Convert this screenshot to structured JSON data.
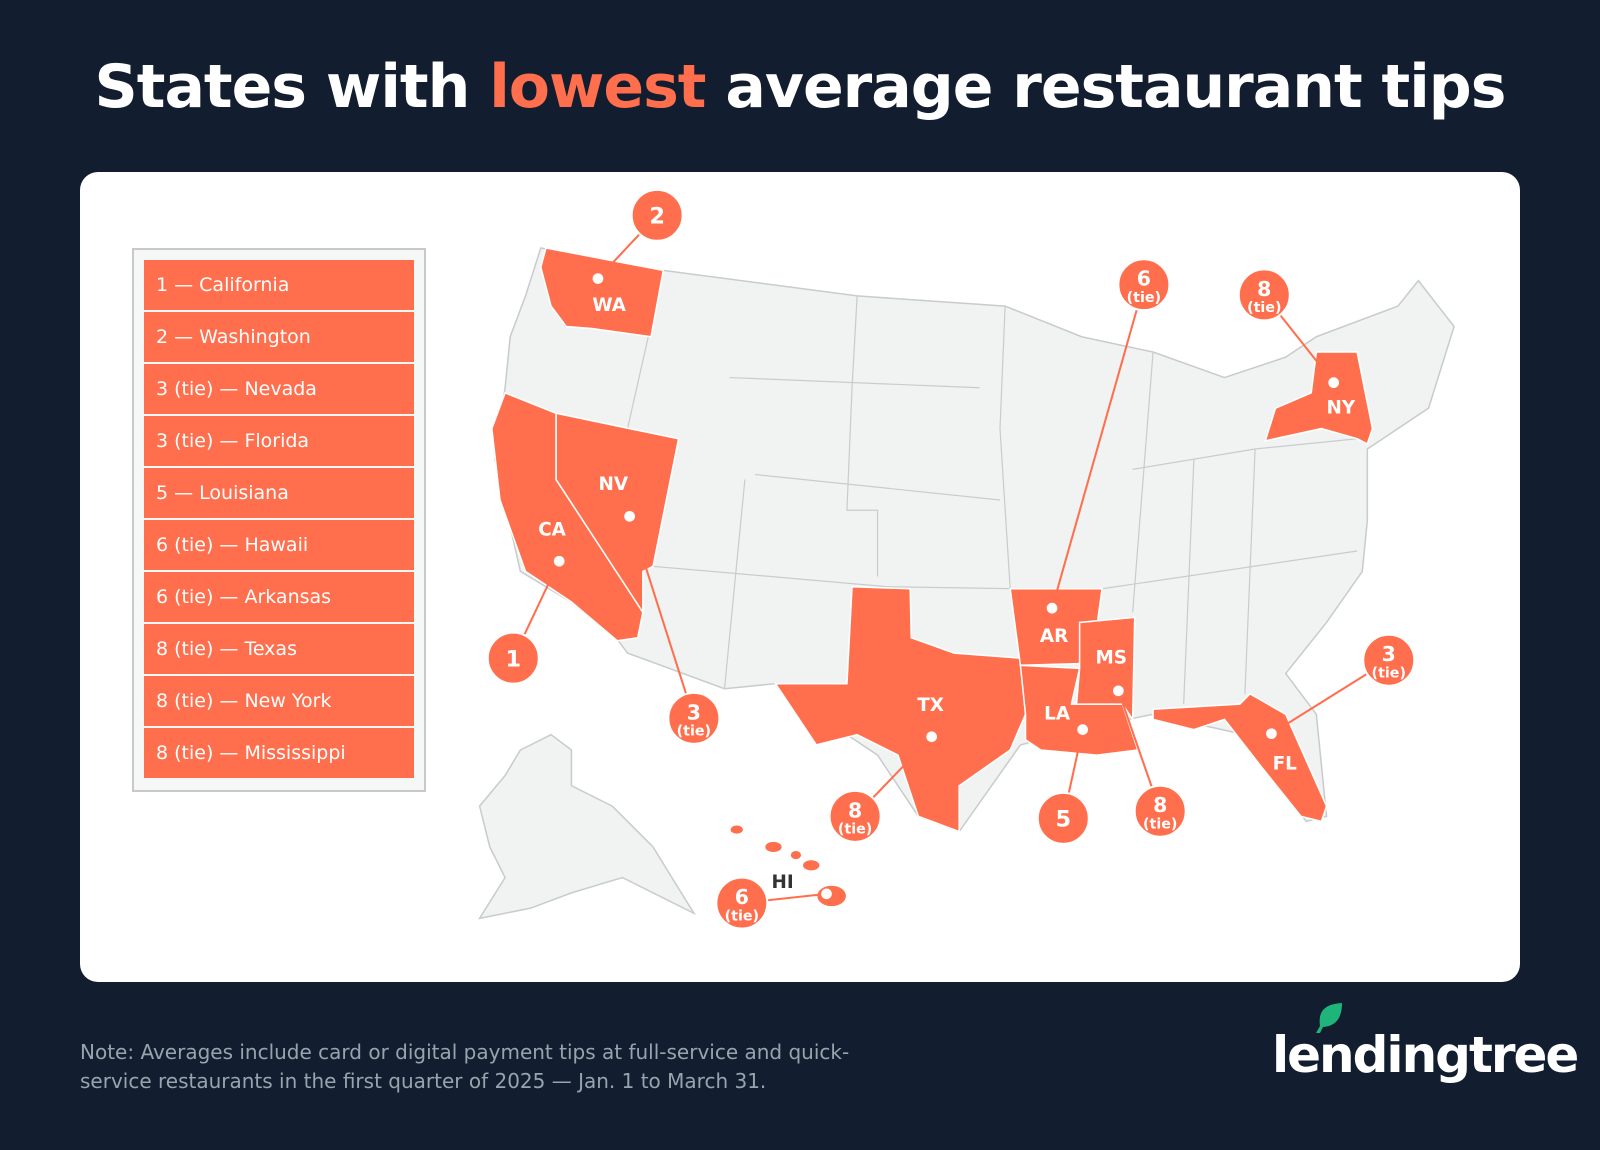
{
  "title": {
    "before": "States with ",
    "highlight": "lowest",
    "after": " average restaurant tips"
  },
  "colors": {
    "background": "#121e2f",
    "accent": "#ff6f4d",
    "land": "#f1f3f3",
    "logo_leaf": "#1fb57a"
  },
  "legend": [
    "1 — California",
    "2 — Washington",
    "3 (tie) — Nevada",
    "3 (tie) — Florida",
    "5 — Louisiana",
    "6 (tie) — Hawaii",
    "6 (tie) — Arkansas",
    "8 (tie) — Texas",
    "8 (tie) — New York",
    "8 (tie) — Mississippi"
  ],
  "map_labels": {
    "WA": "WA",
    "CA": "CA",
    "NV": "NV",
    "TX": "TX",
    "AR": "AR",
    "LA": "LA",
    "MS": "MS",
    "FL": "FL",
    "NY": "NY",
    "HI": "HI"
  },
  "markers": [
    {
      "state": "CA",
      "rank": "1",
      "tie": ""
    },
    {
      "state": "WA",
      "rank": "2",
      "tie": ""
    },
    {
      "state": "NV",
      "rank": "3",
      "tie": "(tie)"
    },
    {
      "state": "FL",
      "rank": "3",
      "tie": "(tie)"
    },
    {
      "state": "LA",
      "rank": "5",
      "tie": ""
    },
    {
      "state": "HI",
      "rank": "6",
      "tie": "(tie)"
    },
    {
      "state": "AR",
      "rank": "6",
      "tie": "(tie)"
    },
    {
      "state": "TX",
      "rank": "8",
      "tie": "(tie)"
    },
    {
      "state": "NY",
      "rank": "8",
      "tie": "(tie)"
    },
    {
      "state": "MS",
      "rank": "8",
      "tie": "(tie)"
    }
  ],
  "note": "Note: Averages include card or digital payment tips at full-service and quick-service restaurants in the first quarter of 2025 — Jan. 1 to March 31.",
  "logo": "lendingtree"
}
